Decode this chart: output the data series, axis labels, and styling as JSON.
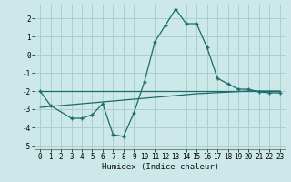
{
  "xlabel": "Humidex (Indice chaleur)",
  "background_color": "#cce8e8",
  "grid_color": "#aacece",
  "line_color": "#1a6b6b",
  "xlim": [
    -0.5,
    23.5
  ],
  "ylim": [
    -5.2,
    2.7
  ],
  "yticks": [
    -5,
    -4,
    -3,
    -2,
    -1,
    0,
    1,
    2
  ],
  "xticks": [
    0,
    1,
    2,
    3,
    4,
    5,
    6,
    7,
    8,
    9,
    10,
    11,
    12,
    13,
    14,
    15,
    16,
    17,
    18,
    19,
    20,
    21,
    22,
    23
  ],
  "line1_x": [
    0,
    1,
    3,
    4,
    5,
    6,
    7,
    8,
    9,
    10,
    11,
    12,
    13,
    14,
    15,
    16,
    17,
    18,
    19,
    20,
    21,
    22,
    23
  ],
  "line1_y": [
    -2.0,
    -2.8,
    -3.5,
    -3.5,
    -3.3,
    -2.7,
    -4.4,
    -4.5,
    -3.2,
    -1.5,
    0.7,
    1.6,
    2.5,
    1.7,
    1.7,
    0.4,
    -1.3,
    -1.6,
    -1.9,
    -1.9,
    -2.05,
    -2.1,
    -2.1
  ],
  "line2_x": [
    0,
    1,
    2,
    3,
    4,
    5,
    6,
    7,
    8,
    9,
    10,
    11,
    12,
    13,
    14,
    15,
    16,
    17,
    18,
    19,
    20,
    21,
    22,
    23
  ],
  "line2_y": [
    -2.0,
    -2.0,
    -2.0,
    -2.0,
    -2.0,
    -2.0,
    -2.0,
    -2.0,
    -2.0,
    -2.0,
    -2.0,
    -2.0,
    -2.0,
    -2.0,
    -2.0,
    -2.0,
    -2.0,
    -2.0,
    -2.0,
    -2.0,
    -2.0,
    -2.0,
    -2.0,
    -2.0
  ],
  "line3_x": [
    0,
    5,
    10,
    15,
    20,
    23
  ],
  "line3_y": [
    -2.9,
    -2.65,
    -2.4,
    -2.15,
    -2.0,
    -2.0
  ]
}
